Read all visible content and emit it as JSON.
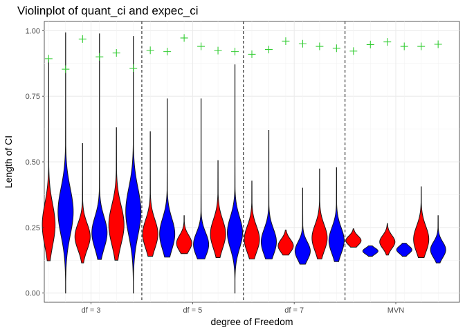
{
  "chart_data": {
    "type": "violin",
    "title": "Violinplot of quant_ci and expec_ci",
    "xlabel": "degree of Freedom",
    "ylabel": "Length of CI",
    "ylim": [
      -0.035,
      1.035
    ],
    "yticks": [
      0.0,
      0.25,
      0.5,
      0.75,
      1.0
    ],
    "ytick_labels": [
      "0.00",
      "0.25",
      "0.50",
      "0.75",
      "1.00"
    ],
    "categories": [
      "df = 3",
      "df = 5",
      "df = 7",
      "MVN"
    ],
    "category_x": [
      2.5,
      8.5,
      14.5,
      20.5
    ],
    "xlim": [
      -0.26,
      24.26
    ],
    "separators_x": [
      5.5,
      11.5,
      17.5
    ],
    "colors": {
      "quant": "#ff0000",
      "expec": "#0000ff",
      "plus": "#33cc33",
      "outline": "#1a1a1a",
      "separator": "#333333"
    },
    "series": [
      {
        "name": "quant_ci",
        "violins": [
          {
            "x": 0,
            "min": 0.123,
            "max": 0.887,
            "median": 0.26,
            "spread": 0.08,
            "halfwidth": 0.38
          },
          {
            "x": 2,
            "min": 0.115,
            "max": 0.57,
            "median": 0.215,
            "spread": 0.05,
            "halfwidth": 0.45
          },
          {
            "x": 4,
            "min": 0.125,
            "max": 0.63,
            "median": 0.26,
            "spread": 0.075,
            "halfwidth": 0.45
          },
          {
            "x": 6,
            "min": 0.14,
            "max": 0.615,
            "median": 0.225,
            "spread": 0.055,
            "halfwidth": 0.45
          },
          {
            "x": 8,
            "min": 0.15,
            "max": 0.295,
            "median": 0.19,
            "spread": 0.03,
            "halfwidth": 0.45
          },
          {
            "x": 10,
            "min": 0.135,
            "max": 0.505,
            "median": 0.225,
            "spread": 0.055,
            "halfwidth": 0.45
          },
          {
            "x": 12,
            "min": 0.13,
            "max": 0.427,
            "median": 0.205,
            "spread": 0.05,
            "halfwidth": 0.45
          },
          {
            "x": 14,
            "min": 0.145,
            "max": 0.24,
            "median": 0.18,
            "spread": 0.025,
            "halfwidth": 0.45
          },
          {
            "x": 16,
            "min": 0.13,
            "max": 0.473,
            "median": 0.21,
            "spread": 0.05,
            "halfwidth": 0.45
          },
          {
            "x": 18,
            "min": 0.175,
            "max": 0.245,
            "median": 0.2,
            "spread": 0.018,
            "halfwidth": 0.45
          },
          {
            "x": 20,
            "min": 0.145,
            "max": 0.265,
            "median": 0.195,
            "spread": 0.025,
            "halfwidth": 0.45
          },
          {
            "x": 22,
            "min": 0.135,
            "max": 0.405,
            "median": 0.205,
            "spread": 0.05,
            "halfwidth": 0.45
          }
        ]
      },
      {
        "name": "expec_ci",
        "violins": [
          {
            "x": 1,
            "min": 0.0,
            "max": 0.992,
            "median": 0.31,
            "spread": 0.09,
            "halfwidth": 0.45
          },
          {
            "x": 3,
            "min": 0.128,
            "max": 0.988,
            "median": 0.23,
            "spread": 0.06,
            "halfwidth": 0.45
          },
          {
            "x": 5,
            "min": 0.0,
            "max": 0.978,
            "median": 0.31,
            "spread": 0.09,
            "halfwidth": 0.45
          },
          {
            "x": 7,
            "min": 0.137,
            "max": 0.74,
            "median": 0.225,
            "spread": 0.06,
            "halfwidth": 0.45
          },
          {
            "x": 9,
            "min": 0.13,
            "max": 0.74,
            "median": 0.185,
            "spread": 0.045,
            "halfwidth": 0.45
          },
          {
            "x": 11,
            "min": 0.0,
            "max": 0.87,
            "median": 0.23,
            "spread": 0.06,
            "halfwidth": 0.45
          },
          {
            "x": 13,
            "min": 0.13,
            "max": 0.62,
            "median": 0.195,
            "spread": 0.05,
            "halfwidth": 0.45
          },
          {
            "x": 15,
            "min": 0.11,
            "max": 0.4,
            "median": 0.16,
            "spread": 0.035,
            "halfwidth": 0.45
          },
          {
            "x": 17,
            "min": 0.12,
            "max": 0.478,
            "median": 0.2,
            "spread": 0.05,
            "halfwidth": 0.45
          },
          {
            "x": 19,
            "min": 0.14,
            "max": 0.18,
            "median": 0.16,
            "spread": 0.012,
            "halfwidth": 0.45
          },
          {
            "x": 21,
            "min": 0.14,
            "max": 0.19,
            "median": 0.165,
            "spread": 0.015,
            "halfwidth": 0.45
          },
          {
            "x": 23,
            "min": 0.115,
            "max": 0.295,
            "median": 0.165,
            "spread": 0.03,
            "halfwidth": 0.45
          }
        ]
      }
    ],
    "markers": {
      "symbol": "+",
      "points": [
        {
          "x": 0,
          "y": 0.893
        },
        {
          "x": 1,
          "y": 0.853
        },
        {
          "x": 2,
          "y": 0.968
        },
        {
          "x": 3,
          "y": 0.9
        },
        {
          "x": 4,
          "y": 0.915
        },
        {
          "x": 5,
          "y": 0.857
        },
        {
          "x": 6,
          "y": 0.925
        },
        {
          "x": 7,
          "y": 0.92
        },
        {
          "x": 8,
          "y": 0.972
        },
        {
          "x": 9,
          "y": 0.94
        },
        {
          "x": 10,
          "y": 0.924
        },
        {
          "x": 11,
          "y": 0.92
        },
        {
          "x": 12,
          "y": 0.91
        },
        {
          "x": 13,
          "y": 0.928
        },
        {
          "x": 14,
          "y": 0.96
        },
        {
          "x": 15,
          "y": 0.95
        },
        {
          "x": 16,
          "y": 0.94
        },
        {
          "x": 17,
          "y": 0.933
        },
        {
          "x": 18,
          "y": 0.922
        },
        {
          "x": 19,
          "y": 0.947
        },
        {
          "x": 20,
          "y": 0.957
        },
        {
          "x": 21,
          "y": 0.94
        },
        {
          "x": 22,
          "y": 0.94
        },
        {
          "x": 23,
          "y": 0.948
        }
      ]
    }
  }
}
